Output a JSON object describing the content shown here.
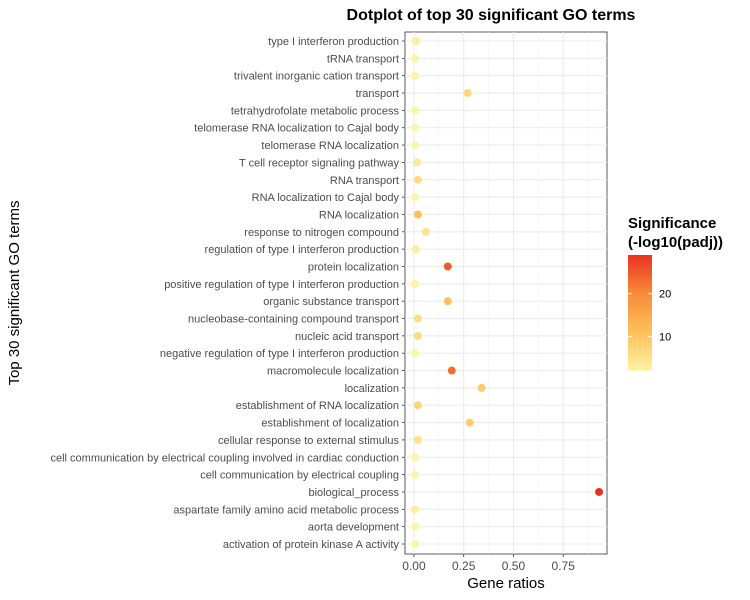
{
  "chart_data": {
    "type": "scatter",
    "title": "Dotplot of top 30 significant GO terms",
    "xlabel": "Gene ratios",
    "ylabel": "Top 30 significant GO terms",
    "xlim": [
      -0.045,
      0.97
    ],
    "x_ticks": [
      0.0,
      0.25,
      0.5,
      0.75
    ],
    "x_tick_labels": [
      "0.00",
      "0.25",
      "0.50",
      "0.75"
    ],
    "grid": true,
    "legend": {
      "title_line1": "Significance",
      "title_line2": "(-log10(padj))",
      "placement": "right",
      "range": [
        2,
        29
      ],
      "ticks": [
        10,
        20
      ],
      "tick_labels": [
        "10",
        "20"
      ],
      "colors": [
        "#fff3a6",
        "#fdc05a",
        "#f98b3a",
        "#e8321f"
      ]
    },
    "points": [
      {
        "term": "type I interferon production",
        "x": 0.01,
        "significance": 3
      },
      {
        "term": "tRNA transport",
        "x": 0.005,
        "significance": 2
      },
      {
        "term": "trivalent inorganic cation transport",
        "x": 0.005,
        "significance": 2
      },
      {
        "term": "transport",
        "x": 0.27,
        "significance": 7
      },
      {
        "term": "tetrahydrofolate metabolic process",
        "x": 0.005,
        "significance": 2
      },
      {
        "term": "telomerase RNA localization to Cajal body",
        "x": 0.005,
        "significance": 2
      },
      {
        "term": "telomerase RNA localization",
        "x": 0.005,
        "significance": 2
      },
      {
        "term": "T cell receptor signaling pathway",
        "x": 0.015,
        "significance": 4
      },
      {
        "term": "RNA transport",
        "x": 0.02,
        "significance": 6
      },
      {
        "term": "RNA localization to Cajal body",
        "x": 0.005,
        "significance": 2
      },
      {
        "term": "RNA localization",
        "x": 0.02,
        "significance": 11
      },
      {
        "term": "response to nitrogen compound",
        "x": 0.06,
        "significance": 5
      },
      {
        "term": "regulation of type I interferon production",
        "x": 0.01,
        "significance": 3
      },
      {
        "term": "protein localization",
        "x": 0.17,
        "significance": 25
      },
      {
        "term": "positive regulation of type I interferon production",
        "x": 0.005,
        "significance": 2
      },
      {
        "term": "organic substance transport",
        "x": 0.17,
        "significance": 11
      },
      {
        "term": "nucleobase-containing compound transport",
        "x": 0.02,
        "significance": 6
      },
      {
        "term": "nucleic acid transport",
        "x": 0.02,
        "significance": 6
      },
      {
        "term": "negative regulation of type I interferon production",
        "x": 0.005,
        "significance": 2
      },
      {
        "term": "macromolecule localization",
        "x": 0.19,
        "significance": 23
      },
      {
        "term": "localization",
        "x": 0.34,
        "significance": 9
      },
      {
        "term": "establishment of RNA localization",
        "x": 0.02,
        "significance": 7
      },
      {
        "term": "establishment of localization",
        "x": 0.28,
        "significance": 9
      },
      {
        "term": "cellular response to external stimulus",
        "x": 0.02,
        "significance": 5
      },
      {
        "term": "cell communication by electrical coupling involved in cardiac conduction",
        "x": 0.005,
        "significance": 2
      },
      {
        "term": "cell communication by electrical coupling",
        "x": 0.005,
        "significance": 2
      },
      {
        "term": "biological_process",
        "x": 0.93,
        "significance": 29
      },
      {
        "term": "aspartate family amino acid metabolic process",
        "x": 0.005,
        "significance": 3
      },
      {
        "term": "aorta development",
        "x": 0.005,
        "significance": 2
      },
      {
        "term": "activation of protein kinase A activity",
        "x": 0.005,
        "significance": 2
      }
    ]
  }
}
